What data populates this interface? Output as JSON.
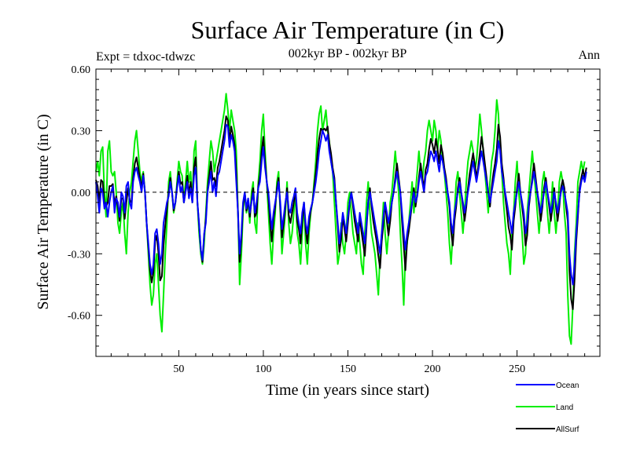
{
  "chart_data": {
    "type": "line",
    "title": "Surface Air Temperature (in C)",
    "subtitle": "002kyr BP - 002kyr BP",
    "experiment_label": "Expt = tdxoc-tdwzc",
    "season_label": "Ann",
    "xlabel": "Time (in years since start)",
    "ylabel": "Surface Air Temperature (in C)",
    "xlim": [
      1,
      299
    ],
    "ylim": [
      -0.8,
      0.6
    ],
    "x_ticks": [
      50,
      100,
      150,
      200,
      250
    ],
    "y_ticks": [
      0.6,
      0.3,
      0.0,
      -0.3,
      -0.6
    ],
    "y_tick_labels": [
      "0.60",
      "0.30",
      "0.00",
      "-0.30",
      "-0.60"
    ],
    "zero_line": true,
    "grid": false,
    "legend_position": "bottom-right",
    "x_years_start": 1,
    "series": [
      {
        "name": "Ocean",
        "color": "#0000ff",
        "values": [
          0.05,
          -0.02,
          -0.1,
          0.02,
          0.0,
          -0.08,
          -0.05,
          -0.12,
          -0.05,
          0.0,
          0.03,
          -0.1,
          -0.03,
          -0.05,
          -0.12,
          0.0,
          -0.02,
          -0.1,
          0.03,
          0.05,
          -0.05,
          -0.08,
          0.05,
          0.1,
          0.12,
          0.08,
          0.05,
          0.0,
          0.08,
          0.0,
          -0.15,
          -0.25,
          -0.35,
          -0.4,
          -0.35,
          -0.2,
          -0.18,
          -0.25,
          -0.35,
          -0.3,
          -0.15,
          -0.1,
          -0.05,
          -0.02,
          0.05,
          0.0,
          -0.08,
          -0.05,
          0.02,
          0.08,
          0.0,
          0.03,
          -0.05,
          0.0,
          0.05,
          -0.03,
          0.02,
          -0.05,
          0.08,
          0.12,
          -0.05,
          -0.15,
          -0.28,
          -0.33,
          -0.2,
          -0.15,
          0.0,
          0.05,
          0.1,
          0.0,
          0.05,
          -0.02,
          0.08,
          0.1,
          0.15,
          0.2,
          0.25,
          0.33,
          0.32,
          0.22,
          0.28,
          0.25,
          0.2,
          0.05,
          -0.1,
          -0.3,
          -0.2,
          -0.05,
          0.0,
          -0.08,
          -0.03,
          -0.1,
          -0.05,
          0.0,
          -0.1,
          -0.05,
          0.02,
          0.05,
          0.15,
          0.22,
          0.12,
          0.05,
          0.0,
          -0.1,
          -0.18,
          -0.1,
          -0.05,
          0.0,
          0.05,
          -0.05,
          -0.18,
          -0.12,
          -0.05,
          0.0,
          -0.08,
          -0.1,
          -0.05,
          -0.02,
          0.02,
          -0.1,
          -0.15,
          -0.2,
          -0.1,
          -0.05,
          -0.15,
          -0.2,
          -0.12,
          -0.08,
          -0.05,
          0.0,
          0.05,
          0.12,
          0.2,
          0.25,
          0.3,
          0.28,
          0.25,
          0.28,
          0.2,
          0.15,
          0.1,
          0.05,
          -0.05,
          -0.15,
          -0.25,
          -0.18,
          -0.1,
          -0.15,
          -0.2,
          -0.12,
          -0.05,
          0.0,
          -0.05,
          -0.1,
          -0.15,
          -0.2,
          -0.1,
          -0.15,
          -0.2,
          -0.25,
          -0.15,
          -0.05,
          0.0,
          -0.05,
          -0.1,
          -0.15,
          -0.2,
          -0.25,
          -0.3,
          -0.2,
          -0.12,
          -0.05,
          -0.1,
          -0.15,
          -0.1,
          -0.05,
          0.0,
          0.05,
          0.1,
          0.05,
          0.0,
          -0.1,
          -0.2,
          -0.28,
          -0.2,
          -0.15,
          -0.1,
          -0.05,
          0.0,
          -0.05,
          -0.02,
          0.05,
          0.1,
          0.05,
          0.0,
          0.08,
          0.1,
          0.15,
          0.2,
          0.18,
          0.15,
          0.2,
          0.15,
          0.1,
          0.18,
          0.15,
          0.1,
          0.05,
          0.0,
          -0.05,
          -0.15,
          -0.2,
          -0.1,
          -0.05,
          0.0,
          0.05,
          0.0,
          -0.05,
          -0.1,
          -0.05,
          0.0,
          0.05,
          0.1,
          0.15,
          0.1,
          0.05,
          0.1,
          0.15,
          0.2,
          0.15,
          0.1,
          0.05,
          0.0,
          -0.05,
          0.0,
          0.05,
          0.1,
          0.15,
          0.25,
          0.2,
          0.1,
          0.05,
          0.0,
          -0.05,
          -0.1,
          -0.15,
          -0.2,
          -0.1,
          -0.05,
          0.0,
          0.05,
          0.0,
          -0.05,
          -0.1,
          -0.2,
          -0.15,
          -0.05,
          0.0,
          0.05,
          0.1,
          0.05,
          0.0,
          -0.05,
          -0.1,
          -0.05,
          0.0,
          0.05,
          0.0,
          -0.05,
          -0.1,
          -0.05,
          0.0,
          -0.05,
          -0.1,
          -0.05,
          0.0,
          0.03,
          0.0,
          -0.05,
          -0.1,
          -0.3,
          -0.4,
          -0.45,
          -0.35,
          -0.2,
          -0.1,
          0.0,
          0.05,
          0.08,
          0.05,
          0.1
        ]
      },
      {
        "name": "Land",
        "color": "#00ee00",
        "values": [
          0.1,
          0.15,
          0.08,
          0.2,
          0.22,
          0.0,
          -0.12,
          0.2,
          0.25,
          0.1,
          0.08,
          0.1,
          0.0,
          -0.15,
          -0.2,
          -0.1,
          -0.05,
          -0.2,
          -0.3,
          -0.1,
          0.0,
          0.05,
          0.15,
          0.25,
          0.3,
          0.2,
          0.1,
          0.05,
          0.1,
          0.0,
          -0.15,
          -0.3,
          -0.45,
          -0.55,
          -0.5,
          -0.35,
          -0.3,
          -0.45,
          -0.6,
          -0.68,
          -0.5,
          -0.3,
          -0.15,
          0.05,
          0.1,
          0.0,
          -0.1,
          -0.05,
          0.05,
          0.15,
          0.1,
          0.08,
          -0.05,
          0.05,
          0.15,
          0.05,
          0.1,
          -0.05,
          0.2,
          0.25,
          -0.05,
          -0.2,
          -0.3,
          -0.35,
          -0.25,
          -0.1,
          0.05,
          0.15,
          0.25,
          0.2,
          0.1,
          0.15,
          0.2,
          0.25,
          0.3,
          0.35,
          0.4,
          0.48,
          0.4,
          0.3,
          0.4,
          0.35,
          0.3,
          0.2,
          -0.1,
          -0.45,
          -0.3,
          -0.1,
          0.0,
          -0.1,
          -0.05,
          -0.15,
          0.0,
          0.05,
          -0.15,
          -0.2,
          0.05,
          0.15,
          0.3,
          0.38,
          0.2,
          0.05,
          -0.1,
          -0.25,
          -0.35,
          -0.2,
          -0.1,
          0.05,
          0.1,
          -0.1,
          -0.3,
          -0.2,
          -0.1,
          0.05,
          -0.15,
          -0.25,
          -0.2,
          -0.1,
          0.0,
          -0.2,
          -0.25,
          -0.35,
          -0.2,
          -0.05,
          -0.25,
          -0.35,
          -0.2,
          -0.1,
          -0.05,
          0.05,
          0.15,
          0.3,
          0.38,
          0.42,
          0.3,
          0.35,
          0.4,
          0.3,
          0.25,
          0.15,
          0.1,
          -0.05,
          -0.2,
          -0.35,
          -0.3,
          -0.15,
          -0.25,
          -0.3,
          -0.2,
          -0.05,
          0.0,
          -0.1,
          -0.2,
          -0.25,
          -0.3,
          -0.15,
          -0.25,
          -0.35,
          -0.4,
          -0.2,
          -0.05,
          0.05,
          -0.1,
          -0.2,
          -0.25,
          -0.3,
          -0.4,
          -0.5,
          -0.3,
          -0.2,
          -0.05,
          -0.2,
          -0.3,
          -0.2,
          -0.05,
          0.0,
          0.1,
          0.2,
          0.1,
          0.0,
          -0.2,
          -0.35,
          -0.55,
          -0.3,
          -0.25,
          -0.15,
          -0.05,
          0.05,
          -0.1,
          0.0,
          0.1,
          0.2,
          0.1,
          0.05,
          0.15,
          0.2,
          0.3,
          0.35,
          0.3,
          0.25,
          0.35,
          0.3,
          0.2,
          0.3,
          0.25,
          0.15,
          0.1,
          0.0,
          -0.1,
          -0.25,
          -0.35,
          -0.2,
          -0.1,
          0.05,
          0.1,
          0.0,
          -0.1,
          -0.2,
          -0.1,
          0.05,
          0.15,
          0.2,
          0.25,
          0.2,
          0.1,
          0.15,
          0.25,
          0.38,
          0.3,
          0.2,
          0.1,
          0.0,
          -0.1,
          0.05,
          0.15,
          0.2,
          0.3,
          0.45,
          0.38,
          0.2,
          0.1,
          -0.05,
          -0.15,
          -0.25,
          -0.3,
          -0.4,
          -0.2,
          -0.1,
          0.05,
          0.15,
          0.0,
          -0.1,
          -0.2,
          -0.35,
          -0.3,
          -0.1,
          0.0,
          0.1,
          0.2,
          0.1,
          0.0,
          -0.1,
          -0.2,
          -0.1,
          0.05,
          0.1,
          0.0,
          -0.1,
          -0.2,
          -0.1,
          0.05,
          -0.1,
          -0.2,
          -0.1,
          0.05,
          0.1,
          0.05,
          -0.1,
          -0.2,
          -0.5,
          -0.7,
          -0.74,
          -0.55,
          -0.3,
          -0.15,
          0.05,
          0.1,
          0.15,
          0.1,
          0.15
        ]
      },
      {
        "name": "AllSurf",
        "color": "#000000",
        "values": [
          0.06,
          0.03,
          -0.05,
          0.06,
          0.05,
          -0.06,
          -0.07,
          -0.05,
          0.03,
          0.03,
          0.04,
          -0.06,
          -0.02,
          -0.07,
          -0.14,
          -0.03,
          -0.03,
          -0.13,
          -0.05,
          0.02,
          -0.04,
          -0.05,
          0.07,
          0.14,
          0.17,
          0.12,
          0.07,
          0.02,
          0.09,
          0.0,
          -0.15,
          -0.27,
          -0.38,
          -0.44,
          -0.39,
          -0.24,
          -0.21,
          -0.3,
          -0.43,
          -0.41,
          -0.26,
          -0.16,
          -0.08,
          0.0,
          0.07,
          0.0,
          -0.09,
          -0.05,
          0.03,
          0.1,
          0.04,
          0.05,
          -0.05,
          0.01,
          0.08,
          -0.01,
          0.05,
          -0.05,
          0.12,
          0.17,
          -0.05,
          -0.16,
          -0.28,
          -0.34,
          -0.21,
          -0.13,
          0.01,
          0.08,
          0.15,
          0.06,
          0.07,
          0.03,
          0.12,
          0.15,
          0.2,
          0.25,
          0.3,
          0.37,
          0.35,
          0.25,
          0.32,
          0.28,
          0.23,
          0.1,
          -0.1,
          -0.34,
          -0.23,
          -0.07,
          0.0,
          -0.09,
          -0.04,
          -0.12,
          -0.04,
          0.02,
          -0.12,
          -0.1,
          0.03,
          0.08,
          0.2,
          0.27,
          0.15,
          0.05,
          -0.03,
          -0.15,
          -0.24,
          -0.13,
          -0.07,
          0.02,
          0.07,
          -0.07,
          -0.22,
          -0.15,
          -0.07,
          0.02,
          -0.11,
          -0.15,
          -0.1,
          -0.05,
          0.01,
          -0.14,
          -0.18,
          -0.25,
          -0.14,
          -0.05,
          -0.18,
          -0.25,
          -0.15,
          -0.09,
          -0.05,
          0.02,
          0.09,
          0.19,
          0.26,
          0.31,
          0.3,
          0.31,
          0.3,
          0.32,
          0.24,
          0.19,
          0.12,
          0.07,
          -0.05,
          -0.17,
          -0.29,
          -0.23,
          -0.12,
          -0.18,
          -0.24,
          -0.15,
          -0.05,
          0.0,
          -0.07,
          -0.14,
          -0.19,
          -0.24,
          -0.12,
          -0.19,
          -0.25,
          -0.31,
          -0.17,
          -0.05,
          0.02,
          -0.07,
          -0.14,
          -0.19,
          -0.24,
          -0.31,
          -0.37,
          -0.24,
          -0.15,
          -0.05,
          -0.14,
          -0.21,
          -0.14,
          -0.05,
          0.0,
          0.07,
          0.14,
          0.07,
          0.0,
          -0.14,
          -0.26,
          -0.38,
          -0.24,
          -0.19,
          -0.12,
          -0.05,
          0.02,
          -0.07,
          -0.01,
          0.07,
          0.14,
          0.07,
          0.02,
          0.11,
          0.14,
          0.21,
          0.26,
          0.23,
          0.19,
          0.26,
          0.21,
          0.14,
          0.23,
          0.19,
          0.12,
          0.07,
          0.0,
          -0.07,
          -0.19,
          -0.26,
          -0.14,
          -0.07,
          0.02,
          0.07,
          0.0,
          -0.07,
          -0.14,
          -0.07,
          0.02,
          0.09,
          0.14,
          0.19,
          0.14,
          0.07,
          0.12,
          0.19,
          0.27,
          0.21,
          0.14,
          0.07,
          0.0,
          -0.07,
          0.02,
          0.09,
          0.14,
          0.21,
          0.33,
          0.27,
          0.14,
          0.07,
          -0.02,
          -0.09,
          -0.17,
          -0.21,
          -0.28,
          -0.14,
          -0.07,
          0.02,
          0.09,
          0.0,
          -0.07,
          -0.14,
          -0.26,
          -0.21,
          -0.07,
          0.0,
          0.07,
          0.14,
          0.07,
          0.0,
          -0.07,
          -0.14,
          -0.07,
          0.02,
          0.07,
          0.0,
          -0.07,
          -0.14,
          -0.07,
          0.02,
          -0.07,
          -0.14,
          -0.07,
          0.02,
          0.06,
          0.02,
          -0.07,
          -0.14,
          -0.38,
          -0.52,
          -0.57,
          -0.43,
          -0.24,
          -0.12,
          0.02,
          0.07,
          0.11,
          0.07,
          0.12
        ]
      }
    ]
  }
}
